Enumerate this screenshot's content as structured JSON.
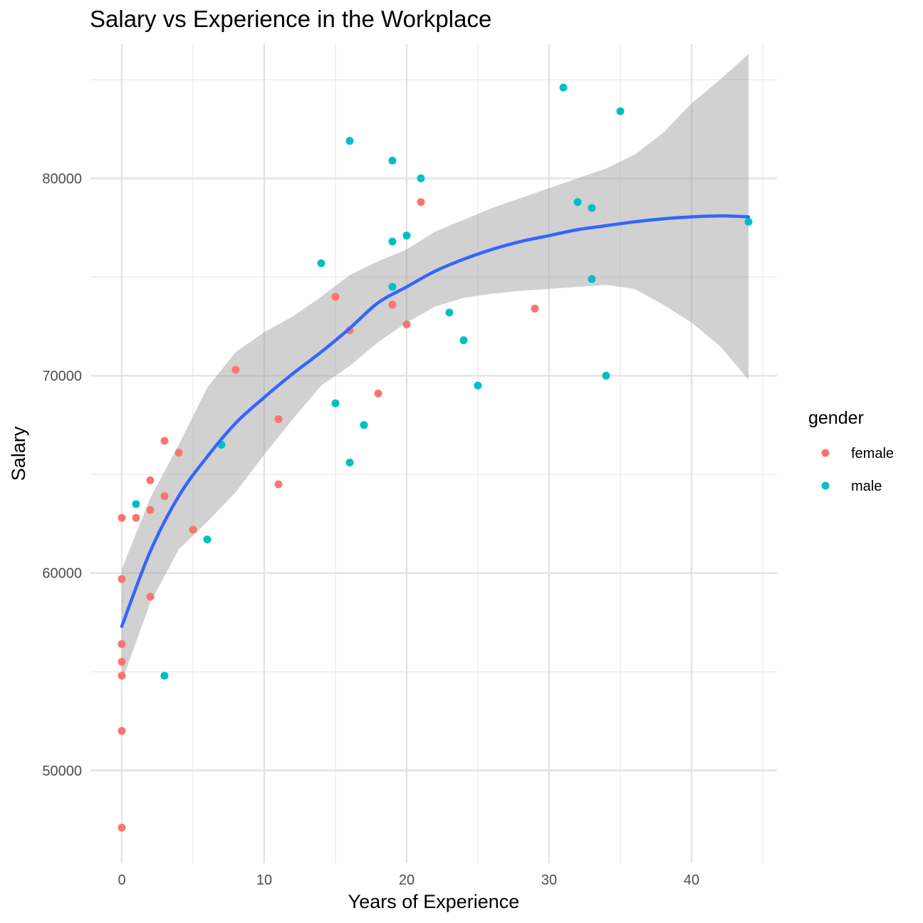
{
  "chart_data": {
    "type": "scatter",
    "title": "Salary vs Experience in the Workplace",
    "xlabel": "Years of Experience",
    "ylabel": "Salary",
    "xlim": [
      -2.2,
      46
    ],
    "ylim": [
      45300,
      86800
    ],
    "x_ticks": [
      0,
      10,
      20,
      30,
      40
    ],
    "x_tick_labels": [
      "0",
      "10",
      "20",
      "30",
      "40"
    ],
    "y_ticks": [
      50000,
      60000,
      70000,
      80000
    ],
    "y_tick_labels": [
      "50000",
      "60000",
      "70000",
      "80000"
    ],
    "grid": true,
    "legend": {
      "title": "gender",
      "position": "right",
      "entries": [
        {
          "label": "female",
          "color": "#F8766D"
        },
        {
          "label": "male",
          "color": "#00BFC4"
        }
      ]
    },
    "series": [
      {
        "name": "female",
        "color": "#F8766D",
        "points": [
          {
            "x": 0,
            "y": 62800
          },
          {
            "x": 0,
            "y": 59700
          },
          {
            "x": 0,
            "y": 56400
          },
          {
            "x": 0,
            "y": 55500
          },
          {
            "x": 0,
            "y": 54800
          },
          {
            "x": 0,
            "y": 52000
          },
          {
            "x": 0,
            "y": 47100
          },
          {
            "x": 1,
            "y": 62800
          },
          {
            "x": 2,
            "y": 64700
          },
          {
            "x": 2,
            "y": 63200
          },
          {
            "x": 2,
            "y": 58800
          },
          {
            "x": 3,
            "y": 66700
          },
          {
            "x": 3,
            "y": 63900
          },
          {
            "x": 4,
            "y": 66100
          },
          {
            "x": 5,
            "y": 62200
          },
          {
            "x": 8,
            "y": 70300
          },
          {
            "x": 11,
            "y": 67800
          },
          {
            "x": 11,
            "y": 64500
          },
          {
            "x": 15,
            "y": 74000
          },
          {
            "x": 16,
            "y": 72300
          },
          {
            "x": 18,
            "y": 69100
          },
          {
            "x": 19,
            "y": 73600
          },
          {
            "x": 20,
            "y": 72600
          },
          {
            "x": 21,
            "y": 78800
          },
          {
            "x": 29,
            "y": 73400
          }
        ]
      },
      {
        "name": "male",
        "color": "#00BFC4",
        "points": [
          {
            "x": 1,
            "y": 63500
          },
          {
            "x": 3,
            "y": 54800
          },
          {
            "x": 6,
            "y": 61700
          },
          {
            "x": 7,
            "y": 66500
          },
          {
            "x": 14,
            "y": 75700
          },
          {
            "x": 15,
            "y": 68600
          },
          {
            "x": 16,
            "y": 81900
          },
          {
            "x": 16,
            "y": 65600
          },
          {
            "x": 17,
            "y": 67500
          },
          {
            "x": 19,
            "y": 80900
          },
          {
            "x": 19,
            "y": 76800
          },
          {
            "x": 19,
            "y": 74500
          },
          {
            "x": 20,
            "y": 77100
          },
          {
            "x": 21,
            "y": 80000
          },
          {
            "x": 23,
            "y": 73200
          },
          {
            "x": 24,
            "y": 71800
          },
          {
            "x": 25,
            "y": 69500
          },
          {
            "x": 31,
            "y": 84600
          },
          {
            "x": 32,
            "y": 78800
          },
          {
            "x": 33,
            "y": 78500
          },
          {
            "x": 33,
            "y": 74900
          },
          {
            "x": 34,
            "y": 70000
          },
          {
            "x": 35,
            "y": 83400
          },
          {
            "x": 44,
            "y": 77800
          }
        ]
      }
    ],
    "smooth": {
      "method": "loess",
      "color": "#3366FF",
      "ribbon_color": "#999999",
      "x": [
        0,
        2,
        4,
        6,
        8,
        10,
        12,
        14,
        16,
        18,
        20,
        22,
        24,
        26,
        28,
        30,
        32,
        34,
        36,
        38,
        40,
        42,
        44
      ],
      "fit": [
        57300,
        61100,
        63900,
        65900,
        67600,
        68900,
        70100,
        71200,
        72400,
        73700,
        74500,
        75300,
        75900,
        76400,
        76800,
        77100,
        77400,
        77600,
        77800,
        77950,
        78050,
        78100,
        78050
      ],
      "lower": [
        54500,
        58500,
        61200,
        62600,
        64100,
        66000,
        67800,
        69500,
        70500,
        71700,
        72700,
        73500,
        73950,
        74150,
        74300,
        74400,
        74500,
        74600,
        74400,
        73600,
        72700,
        71500,
        69800
      ],
      "upper": [
        60200,
        63800,
        66500,
        69400,
        71200,
        72200,
        73000,
        74000,
        75100,
        75800,
        76400,
        77300,
        77900,
        78500,
        79000,
        79500,
        80000,
        80500,
        81200,
        82300,
        83800,
        85000,
        86300
      ]
    }
  }
}
